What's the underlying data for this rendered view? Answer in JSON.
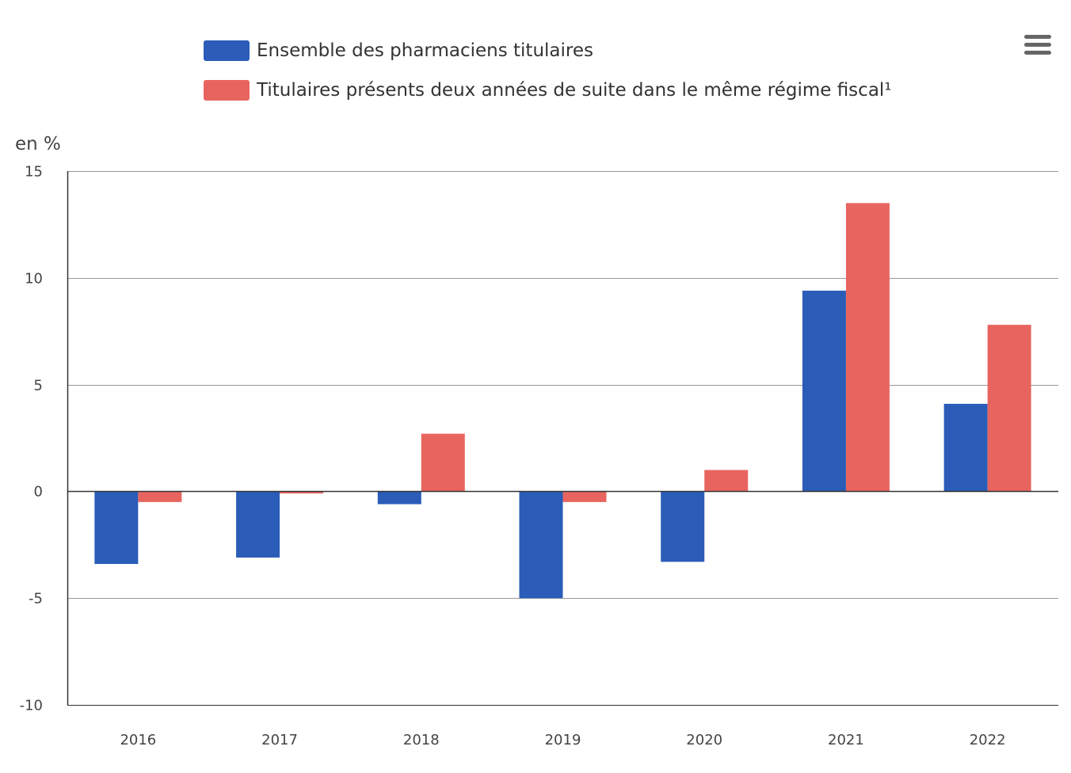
{
  "legend": [
    {
      "label": "Ensemble des pharmaciens titulaires",
      "color": "#2a5cb8"
    },
    {
      "label": "Titulaires présents deux années de suite dans le même régime fiscal¹",
      "color": "#e8655f"
    }
  ],
  "menu": {
    "icon": "hamburger-menu-icon"
  },
  "chart_data": {
    "type": "bar",
    "categories": [
      "2016",
      "2017",
      "2018",
      "2019",
      "2020",
      "2021",
      "2022"
    ],
    "series": [
      {
        "name": "Ensemble des pharmaciens titulaires",
        "color": "#2a5cb8",
        "values": [
          -3.4,
          -3.1,
          -0.6,
          -5.0,
          -3.3,
          9.4,
          4.1
        ]
      },
      {
        "name": "Titulaires présents deux années de suite dans le même régime fiscal¹",
        "color": "#e8655f",
        "values": [
          -0.5,
          -0.1,
          2.7,
          -0.5,
          1.0,
          13.5,
          7.8
        ]
      }
    ],
    "ylabel": "en %",
    "ylim": [
      -10,
      15
    ],
    "yticks": [
      15,
      10,
      5,
      0,
      -5,
      -10
    ],
    "ytick_labels": [
      "15",
      "10",
      "5",
      "0",
      "-5",
      "-10"
    ],
    "grid": true,
    "legend_position": "top"
  }
}
